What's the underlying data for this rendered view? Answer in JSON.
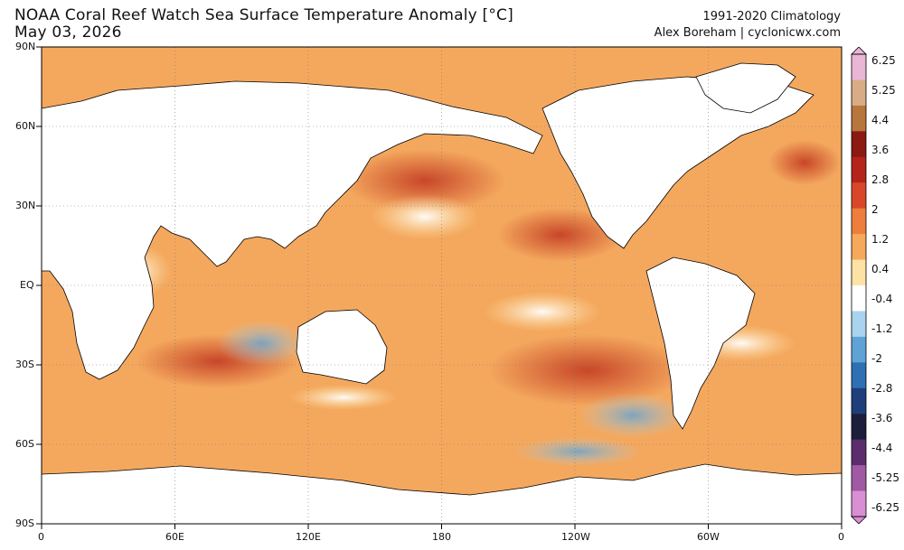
{
  "header": {
    "title": "NOAA Coral Reef Watch Sea Surface Temperature Anomaly [°C]",
    "date": "May 03, 2026",
    "climatology": "1991-2020 Climatology",
    "credit": "Alex Boreham | cyclonicwx.com"
  },
  "axes": {
    "y_labels": [
      "90N",
      "60N",
      "30N",
      "EQ",
      "30S",
      "60S",
      "90S"
    ],
    "x_labels": [
      "0",
      "60E",
      "120E",
      "180",
      "120W",
      "60W",
      "0"
    ]
  },
  "colorbar": {
    "labels": [
      "6.25",
      "5.25",
      "4.4",
      "3.6",
      "2.8",
      "2",
      "1.2",
      "0.4",
      "-0.4",
      "-1.2",
      "-2",
      "-2.8",
      "-3.6",
      "-4.4",
      "-5.25",
      "-6.25"
    ],
    "colors": [
      "#e9b6d6",
      "#d8ad86",
      "#b7763b",
      "#8b1a12",
      "#b5241a",
      "#d9472b",
      "#ee7e3d",
      "#f6a95a",
      "#fde3a3",
      "#ffffff",
      "#a9d3ee",
      "#5fa3d6",
      "#2f6fb3",
      "#1f3f7a",
      "#1b1f3b",
      "#5c2d6e",
      "#a05aa5",
      "#d98fd3"
    ]
  },
  "map": {
    "projection": "equirectangular",
    "central_longitude": 180,
    "land_color": "#ffffff",
    "coastline_color": "#000000",
    "ocean_base_color": "#f6a95a"
  }
}
